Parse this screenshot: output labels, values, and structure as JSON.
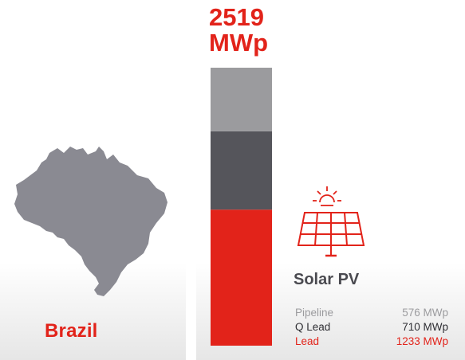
{
  "country": "Brazil",
  "total": {
    "value": "2519",
    "unit": "MWp"
  },
  "technology": "Solar PV",
  "icons": {
    "map": "brazil-map-icon",
    "sun": "sun-icon",
    "panel": "solar-panel-icon"
  },
  "colors": {
    "accent": "#e2231a",
    "pipeline": "#9b9b9e",
    "q_lead": "#55555b",
    "lead": "#e2231a",
    "map": "#8a8a92"
  },
  "legend": [
    {
      "label": "Pipeline",
      "value": "576 MWp"
    },
    {
      "label": "Q Lead",
      "value": "710 MWp"
    },
    {
      "label": "Lead",
      "value": "1233 MWp"
    }
  ],
  "chart_data": {
    "type": "bar",
    "categories": [
      "Brazil"
    ],
    "series": [
      {
        "name": "Pipeline",
        "values": [
          576
        ]
      },
      {
        "name": "Q Lead",
        "values": [
          710
        ]
      },
      {
        "name": "Lead",
        "values": [
          1233
        ]
      }
    ],
    "total": 2519,
    "unit": "MWp",
    "stacked": true,
    "grid": false,
    "legend_placement": "bottom-right"
  }
}
